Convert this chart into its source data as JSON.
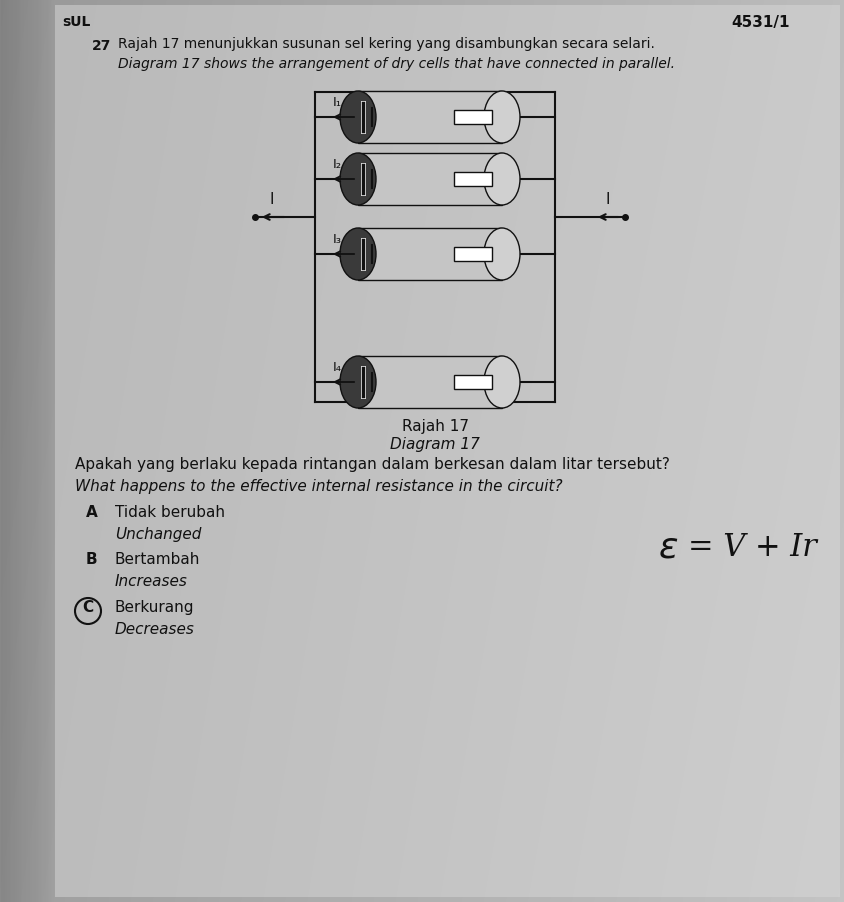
{
  "bg_color_left": "#b0b0b0",
  "bg_color_right": "#d0d0d0",
  "page_color": "#dcdcdc",
  "header_text": "4531/1",
  "question_num": "27",
  "malay_title": "Rajah 17 menunjukkan susunan sel kering yang disambungkan secara selari.",
  "english_title": "Diagram 17 shows the arrangement of dry cells that have connected in parallel.",
  "diagram_label_malay": "Rajah 17",
  "diagram_label_english": "Diagram 17",
  "question_malay": "Apakah yang berlaku kepada rintangan dalam berkesan dalam litar tersebut?",
  "question_english": "What happens to the effective internal resistance in the circuit?",
  "option_A_malay": "Tidak berubah",
  "option_A_english": "Unchanged",
  "option_B_malay": "Bertambah",
  "option_B_english": "Increases",
  "option_C_malay": "Berkurang",
  "option_C_english": "Decreases",
  "formula": "ε = V + Ir",
  "header_label": "sUL",
  "cell_body_color": "#c8c8c8",
  "cell_dark_color": "#404040",
  "cell_light_color": "#e8e8e8",
  "wire_color": "#111111",
  "text_color": "#111111"
}
